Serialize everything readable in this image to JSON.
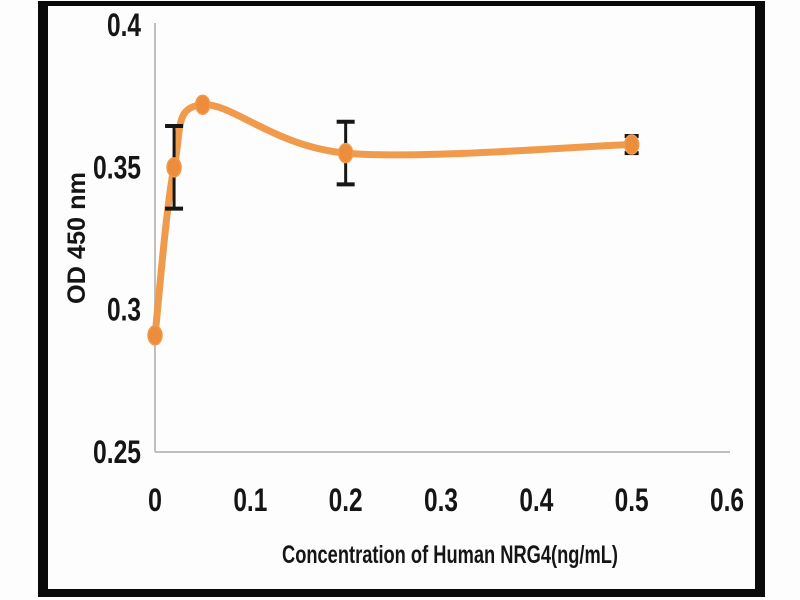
{
  "chart_data": {
    "type": "line",
    "title": "",
    "xlabel": "Concentration of Human NRG4(ng/mL)",
    "ylabel": "OD 450 nm",
    "x": [
      0,
      0.02,
      0.05,
      0.2,
      0.5
    ],
    "y": [
      0.291,
      0.35,
      0.372,
      0.355,
      0.358
    ],
    "yerr": [
      0,
      0.0145,
      0,
      0.011,
      0.003
    ],
    "xlim": [
      0,
      0.6
    ],
    "ylim": [
      0.25,
      0.4
    ],
    "xtick_values": [
      0,
      0.1,
      0.2,
      0.3,
      0.4,
      0.5,
      0.6
    ],
    "xtick_labels": [
      "0",
      "0.1",
      "0.2",
      "0.3",
      "0.4",
      "0.5",
      "0.6"
    ],
    "ytick_values": [
      0.25,
      0.3,
      0.35,
      0.4
    ],
    "ytick_labels": [
      "0.25",
      "0.3",
      "0.35",
      "0.4"
    ],
    "grid": false,
    "legend": null,
    "marker": "filled-ellipse",
    "colors": {
      "line": "#F09B4B",
      "marker": "#ED8C3B",
      "error_bar": "#161616",
      "axis": "#BFBFBF",
      "text": "#151515",
      "frame": "#0A0A0A",
      "background": "#FDFDFD"
    }
  }
}
